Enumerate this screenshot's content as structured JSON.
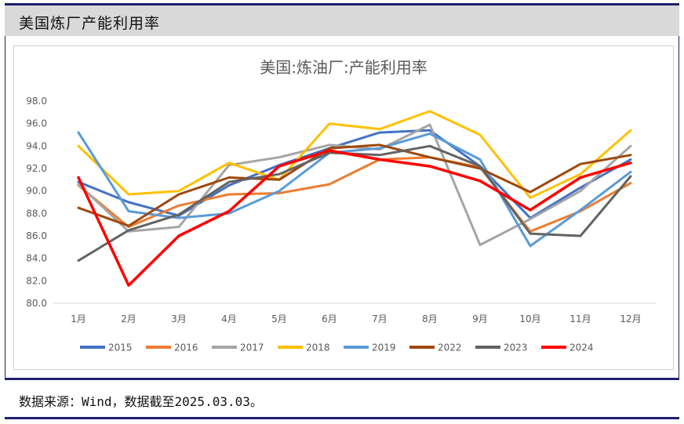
{
  "header": {
    "title": "美国炼厂产能利用率"
  },
  "footer": {
    "source": "数据来源：Wind，数据截至2025.03.03。"
  },
  "chart_data": {
    "type": "line",
    "title": "美国:炼油厂:产能利用率",
    "categories": [
      "1月",
      "2月",
      "3月",
      "4月",
      "5月",
      "6月",
      "7月",
      "8月",
      "9月",
      "10月",
      "11月",
      "12月"
    ],
    "ylim": [
      80,
      98
    ],
    "yticks": [
      "80.0",
      "82.0",
      "84.0",
      "86.0",
      "88.0",
      "90.0",
      "92.0",
      "94.0",
      "96.0",
      "98.0"
    ],
    "grid": false,
    "legend": "bottom",
    "series": [
      {
        "name": "2015",
        "color": "#4472c4",
        "values": [
          90.8,
          89.0,
          87.8,
          90.5,
          92.3,
          93.8,
          95.2,
          95.4,
          92.2,
          87.6,
          90.3,
          92.8
        ]
      },
      {
        "name": "2016",
        "color": "#ed7d31",
        "values": [
          90.5,
          86.8,
          88.7,
          89.7,
          89.8,
          90.6,
          92.8,
          93.0,
          92.1,
          86.4,
          88.2,
          90.7
        ]
      },
      {
        "name": "2017",
        "color": "#a5a5a5",
        "values": [
          90.6,
          86.4,
          86.8,
          92.3,
          93.0,
          94.1,
          93.7,
          95.9,
          85.2,
          87.5,
          90.0,
          94.0
        ]
      },
      {
        "name": "2018",
        "color": "#ffc000",
        "values": [
          94.0,
          89.7,
          90.0,
          92.5,
          91.0,
          96.0,
          95.5,
          97.1,
          95.0,
          89.4,
          91.5,
          95.4
        ]
      },
      {
        "name": "2019",
        "color": "#5b9bd5",
        "values": [
          95.2,
          88.2,
          87.6,
          88.0,
          90.0,
          93.4,
          93.8,
          95.1,
          92.8,
          85.1,
          88.3,
          91.7
        ]
      },
      {
        "name": "2022",
        "color": "#9e480e",
        "values": [
          88.5,
          86.9,
          89.7,
          91.2,
          91.0,
          93.8,
          94.1,
          93.0,
          92.0,
          89.9,
          92.4,
          93.2
        ]
      },
      {
        "name": "2023",
        "color": "#636363",
        "values": [
          83.8,
          86.5,
          87.9,
          90.8,
          91.5,
          93.4,
          93.2,
          94.0,
          92.2,
          86.2,
          86.0,
          91.3
        ]
      },
      {
        "name": "2024",
        "color": "#ff0000",
        "values": [
          91.2,
          81.6,
          86.0,
          88.2,
          92.2,
          93.6,
          92.8,
          92.2,
          90.9,
          88.3,
          91.2,
          92.5
        ]
      }
    ]
  }
}
